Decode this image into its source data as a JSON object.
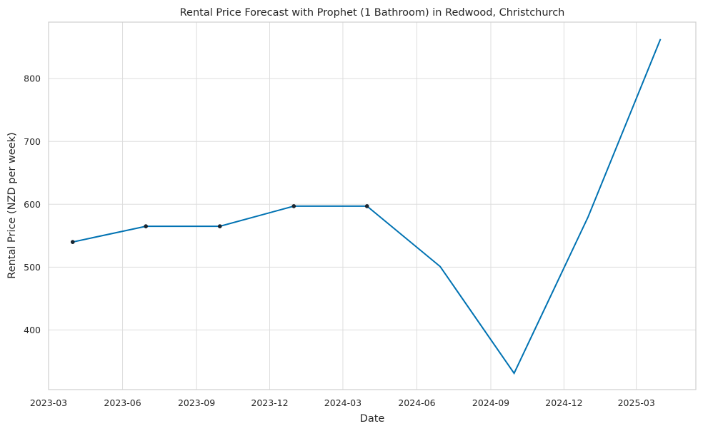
{
  "chart_data": {
    "type": "line",
    "title": "Rental Price Forecast with Prophet (1 Bathroom) in Redwood, Christchurch",
    "xlabel": "Date",
    "ylabel": "Rental Price (NZD per week)",
    "xlim": [
      "2023-03-01",
      "2025-05-14"
    ],
    "ylim": [
      305,
      890
    ],
    "grid": true,
    "x_ticks": [
      "2023-03",
      "2023-06",
      "2023-09",
      "2023-12",
      "2024-03",
      "2024-06",
      "2024-09",
      "2024-12",
      "2025-03"
    ],
    "y_ticks": [
      400,
      500,
      600,
      700,
      800
    ],
    "series": [
      {
        "x": [
          "2023-03-31",
          "2023-06-30",
          "2023-09-30",
          "2023-12-31",
          "2024-03-31",
          "2024-06-30",
          "2024-09-30",
          "2024-12-31",
          "2025-03-31"
        ],
        "y": [
          540,
          565,
          565,
          597,
          597,
          501,
          331,
          580,
          863
        ],
        "color": "#0072B2"
      }
    ],
    "observed": {
      "x": [
        "2023-03-31",
        "2023-06-30",
        "2023-09-30",
        "2023-12-31",
        "2024-03-31"
      ],
      "y": [
        540,
        565,
        565,
        597,
        597
      ],
      "color": "#1a2733"
    }
  }
}
